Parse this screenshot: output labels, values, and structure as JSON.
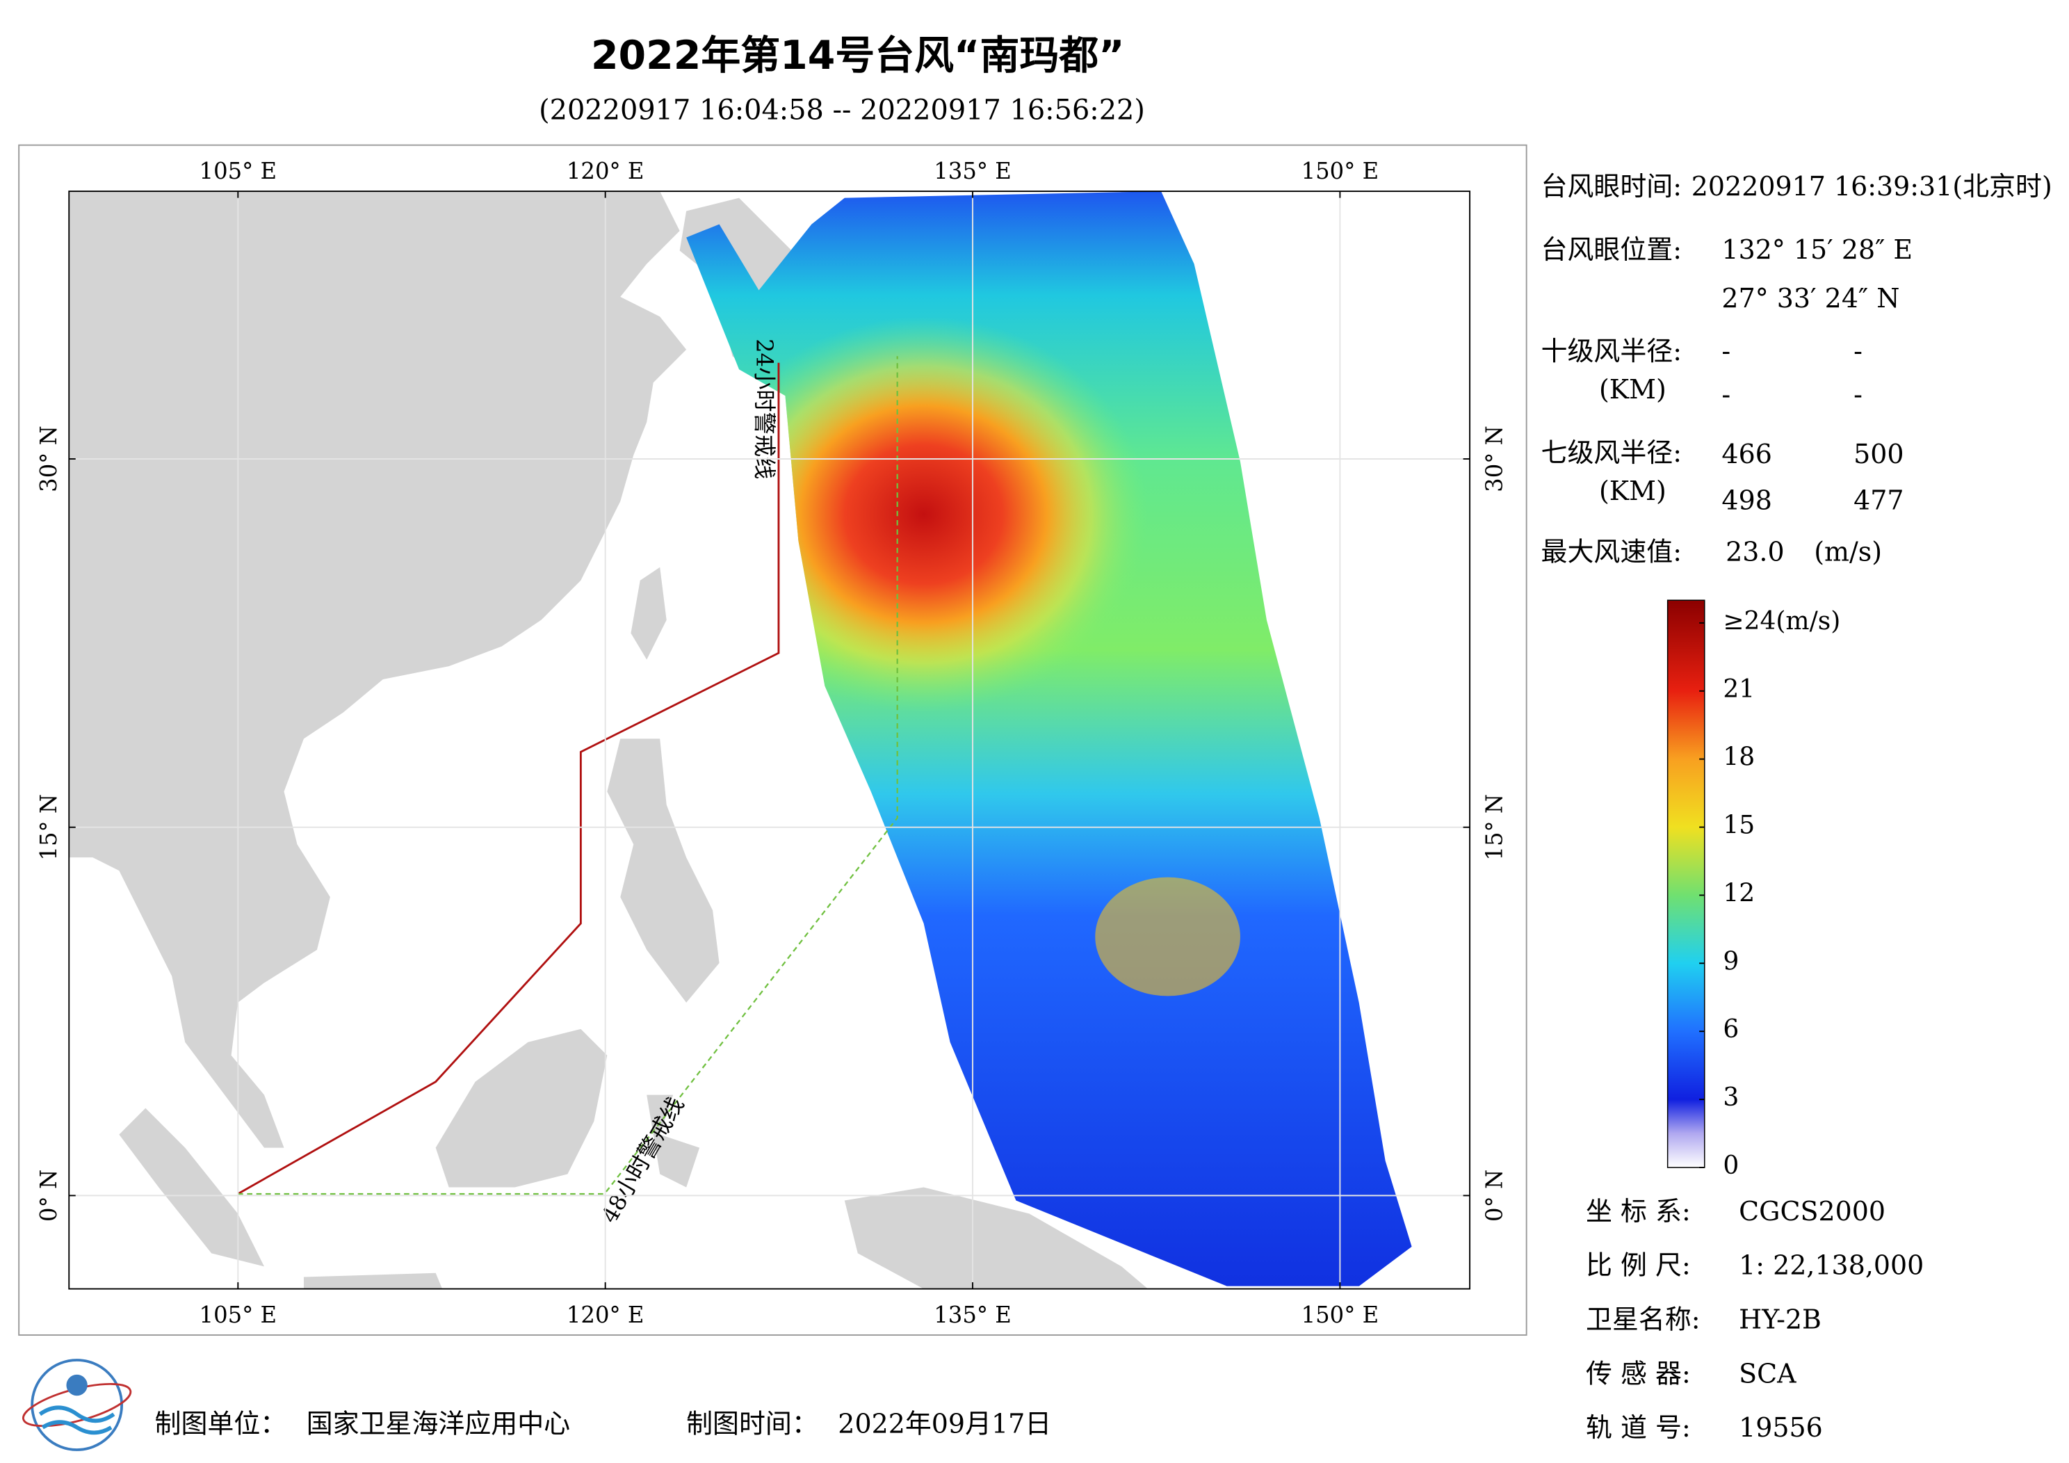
{
  "header": {
    "title": "2022年第14号台风“南玛都”",
    "subtitle": "(20220917 16:04:58 -- 20220917 16:56:22)"
  },
  "map": {
    "xlim": [
      98.1,
      155.3
    ],
    "ylim": [
      -3.8,
      40.9
    ],
    "xticks": [
      {
        "value": 105,
        "label": "105° E"
      },
      {
        "value": 120,
        "label": "120° E"
      },
      {
        "value": 135,
        "label": "135° E"
      },
      {
        "value": 150,
        "label": "150° E"
      }
    ],
    "yticks": [
      {
        "value": 0,
        "label": "0° N"
      },
      {
        "value": 15,
        "label": "15° N"
      },
      {
        "value": 30,
        "label": "30° N"
      }
    ],
    "annotations": [
      "24小时警戒线",
      "48小时警戒线"
    ]
  },
  "colorbar": {
    "lim": [
      0,
      25
    ],
    "ticks": [
      0,
      3,
      6,
      9,
      12,
      15,
      18,
      21,
      {
        "value": 24,
        "label": "≥24(m/s)"
      }
    ]
  },
  "info": {
    "eye_time_label": "台风眼时间:",
    "eye_time": "20220917 16:39:31(北京时)",
    "eye_pos_label": "台风眼位置:",
    "eye_lon": "132° 15′ 28″ E",
    "eye_lat": "27° 33′ 24″ N",
    "r10_label": "十级风半径:",
    "r10_unit": "(KM)",
    "r10": [
      "-",
      "-",
      "-",
      "-"
    ],
    "r7_label": "七级风半径:",
    "r7_unit": "(KM)",
    "r7": [
      466,
      500,
      498,
      477
    ],
    "max_wind_label": "最大风速值:",
    "max_wind": "23.0",
    "max_wind_unit": "(m/s)"
  },
  "meta": {
    "rows": [
      [
        "坐 标 系:",
        "CGCS2000"
      ],
      [
        "比 例 尺:",
        "1: 22,138,000"
      ],
      [
        "卫星名称:",
        "HY-2B"
      ],
      [
        "传 感 器:",
        "SCA"
      ],
      [
        "轨 道 号:",
        "19556"
      ]
    ]
  },
  "footer": {
    "unit_label": "制图单位：",
    "unit": "国家卫星海洋应用中心",
    "time_label": "制图时间：",
    "time": "2022年09月17日"
  }
}
